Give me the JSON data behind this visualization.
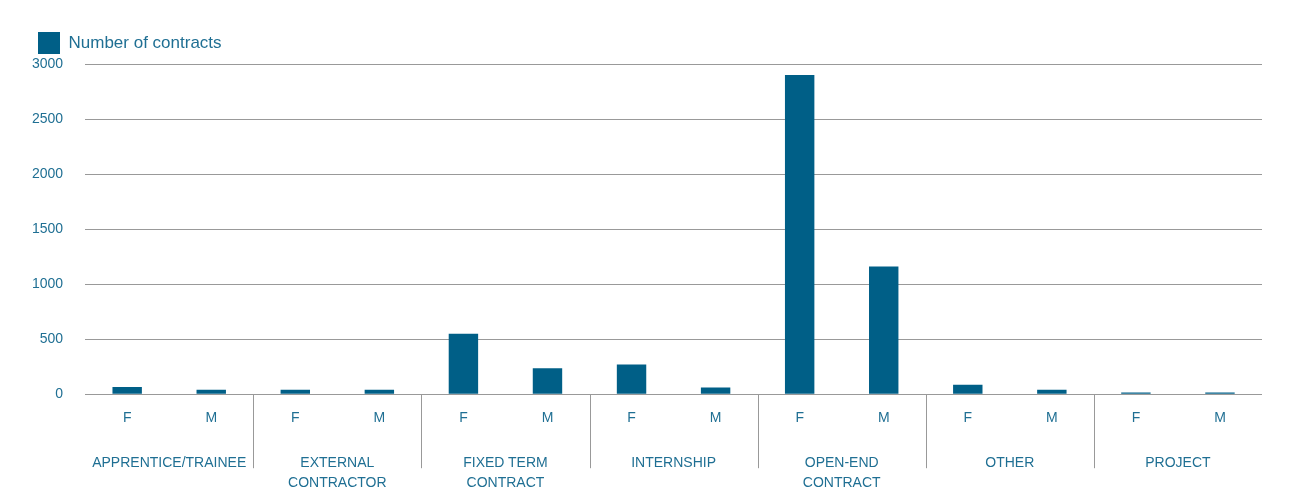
{
  "chart_data": {
    "type": "bar",
    "categories": [
      "F",
      "M",
      "F",
      "M",
      "F",
      "M",
      "F",
      "M",
      "F",
      "M",
      "F",
      "M",
      "F",
      "M"
    ],
    "series": [
      {
        "name": "Number of contracts",
        "color": "#005f87",
        "values": [
          65,
          40,
          40,
          40,
          550,
          235,
          270,
          60,
          2900,
          1160,
          85,
          40,
          15,
          15
        ]
      }
    ],
    "ylim": [
      0,
      3000
    ],
    "yticks": [
      0,
      500,
      1000,
      1500,
      2000,
      2500,
      3000
    ],
    "grid": "y",
    "legend": "top left",
    "annotations": [
      "APPRENTICE/TRAINEE",
      "EXTERNAL CONTRACTOR",
      "FIXED TERM CONTRACT",
      "INTERNSHIP",
      "OPEN-END CONTRACT",
      "OTHER",
      "PROJECT"
    ]
  }
}
